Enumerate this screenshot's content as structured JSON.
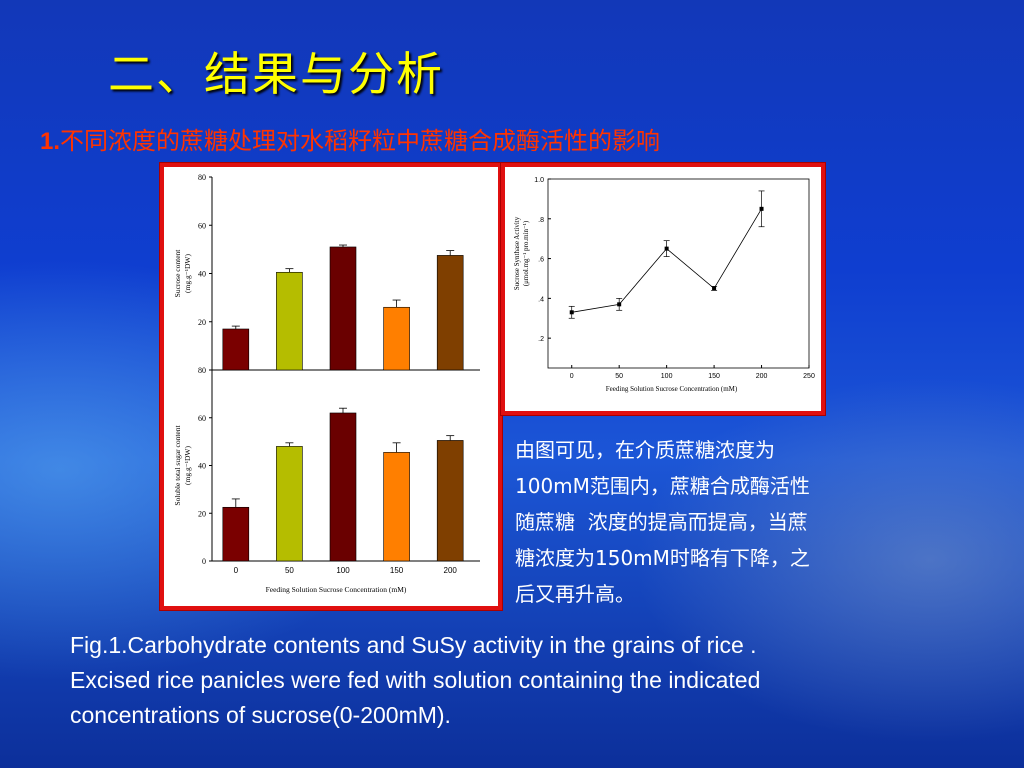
{
  "slide": {
    "title": "二、结果与分析",
    "subtitle_num": "1.",
    "subtitle_text": "不同浓度的蔗糖处理对水稻籽粒中蔗糖合成酶活性的影响",
    "explanation_lines": [
      "由图可见，在介质蔗糖浓度为",
      "100mM范围内，蔗糖合成酶活性",
      "随蔗糖  浓度的提高而提高，当蔗",
      "糖浓度为150mM时略有下降，之",
      "后又再升高。"
    ],
    "caption_lines": [
      "Fig.1.Carbohydrate contents and SuSy activity in the grains of rice .",
      "Excised rice panicles were fed with solution containing the indicated",
      "concentrations of sucrose(0-200mM)."
    ]
  },
  "colors": {
    "title": "#ffff00",
    "subtitle": "#ff3300",
    "frame_border": "#e01010",
    "bars": [
      "#7a0000",
      "#b5bd00",
      "#6a0000",
      "#ff7f00",
      "#7f3f00"
    ]
  },
  "chart_data": [
    {
      "type": "bar",
      "categories": [
        "0",
        "50",
        "100",
        "150",
        "200"
      ],
      "values": [
        17,
        40.5,
        51,
        26,
        47.5
      ],
      "errors": [
        1.2,
        1.5,
        0.8,
        3,
        2
      ],
      "ylabel": "Sucrose content",
      "ylabel_unit": "(mg.g⁻¹DW)",
      "ylim": [
        0,
        80
      ],
      "yticks": [
        20,
        40,
        60,
        80
      ],
      "show_x_ticks": false
    },
    {
      "type": "bar",
      "categories": [
        "0",
        "50",
        "100",
        "150",
        "200"
      ],
      "values": [
        22.5,
        48,
        62,
        45.5,
        50.5
      ],
      "errors": [
        3.5,
        1.5,
        2,
        4,
        2
      ],
      "ylabel": "Soluble total sugar content",
      "ylabel_unit": "(mg.g⁻¹DW)",
      "xlabel": "Feeding Solution Sucrose Concentration (mM)",
      "ylim": [
        0,
        80
      ],
      "yticks": [
        0,
        20,
        40,
        60,
        80
      ],
      "show_x_ticks": true
    },
    {
      "type": "line",
      "x": [
        0,
        50,
        100,
        150,
        200
      ],
      "y": [
        0.33,
        0.37,
        0.65,
        0.45,
        0.85
      ],
      "errors": [
        0.03,
        0.03,
        0.04,
        0.01,
        0.09
      ],
      "ylabel": "Sucrose Synthase Activity",
      "ylabel_unit": "(μmol.mg⁻¹ pro.min⁻¹)",
      "xlabel": "Feeding Solution Sucrose Concentration (mM)",
      "xlim": [
        -25,
        250
      ],
      "ylim": [
        0.05,
        1.0
      ],
      "xticks": [
        "0",
        "50",
        "100",
        "150",
        "200",
        "250"
      ],
      "yticks": [
        ".2",
        ".4",
        ".6",
        ".8",
        "1.0"
      ]
    }
  ]
}
